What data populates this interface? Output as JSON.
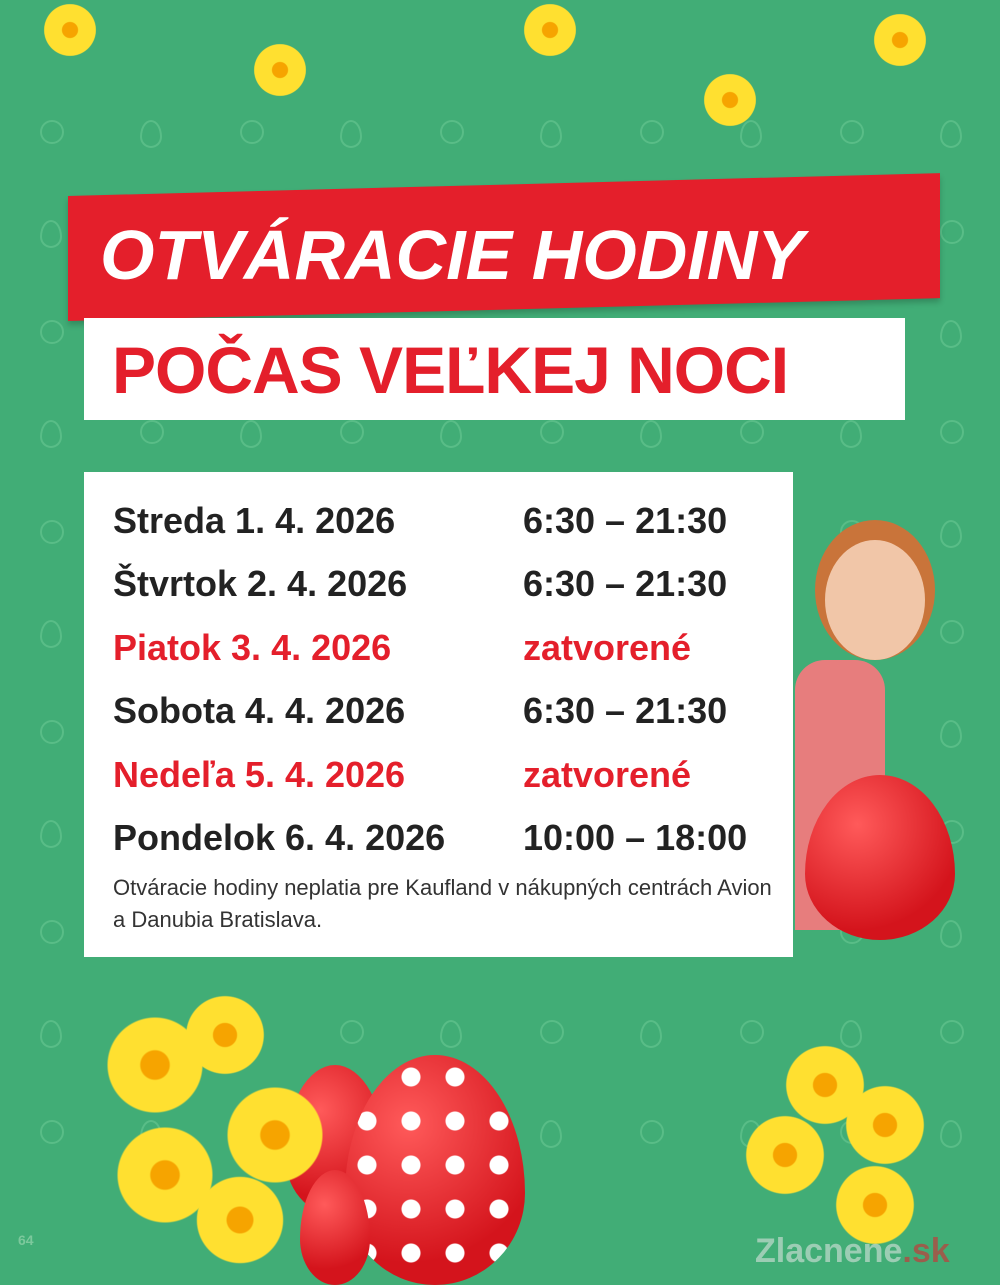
{
  "heading": {
    "line1": "OTVÁRACIE HODINY",
    "line2": "POČAS VEĽKEJ NOCI"
  },
  "schedule": [
    {
      "day": "Streda 1. 4. 2026",
      "hours": "6:30 – 21:30",
      "closed": false
    },
    {
      "day": "Štvrtok 2. 4. 2026",
      "hours": "6:30 – 21:30",
      "closed": false
    },
    {
      "day": "Piatok 3. 4. 2026",
      "hours": "zatvorené",
      "closed": true
    },
    {
      "day": "Sobota 4. 4. 2026",
      "hours": "6:30 – 21:30",
      "closed": false
    },
    {
      "day": "Nedeľa 5. 4. 2026",
      "hours": "zatvorené",
      "closed": true
    },
    {
      "day": "Pondelok 6. 4. 2026",
      "hours": "10:00 – 18:00",
      "closed": false
    }
  ],
  "note": "Otváracie hodiny neplatia pre Kaufland v nákupných centrách Avion a Danubia Bratislava.",
  "page_number": "64",
  "watermark": {
    "part1": "Zlacnene",
    "part2": ".sk"
  },
  "colors": {
    "background": "#41ad76",
    "red": "#e41f2b",
    "text": "#222222"
  }
}
